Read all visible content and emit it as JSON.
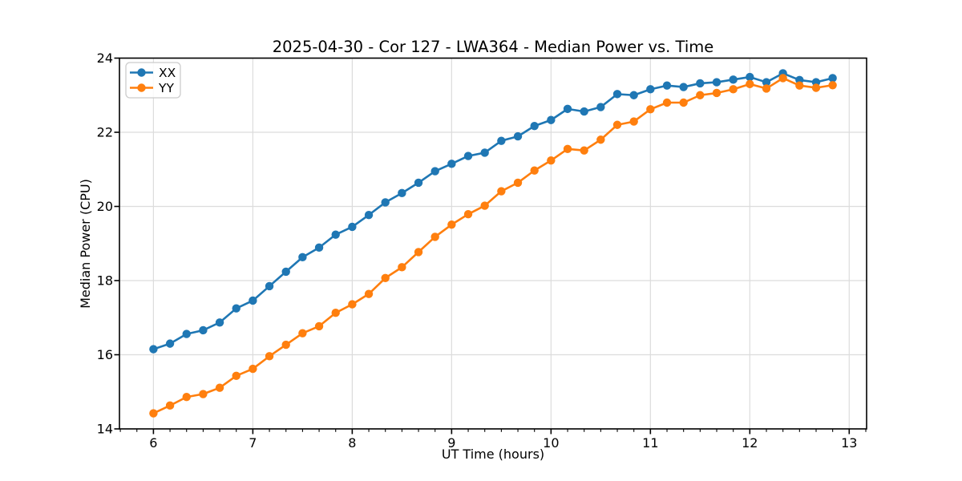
{
  "figure": {
    "background": "#ffffff",
    "axes_edge_color": "#000000",
    "grid_color": "#dcdcdc"
  },
  "chart_data": {
    "type": "line",
    "title": "2025-04-30 - Cor 127 - LWA364 - Median Power vs. Time",
    "xlabel": "UT Time (hours)",
    "ylabel": "Median Power (CPU)",
    "xlim": [
      5.658,
      13.175
    ],
    "ylim": [
      14,
      24
    ],
    "xticks": [
      6,
      7,
      8,
      9,
      10,
      11,
      12,
      13
    ],
    "yticks": [
      14,
      16,
      18,
      20,
      22,
      24
    ],
    "x_minor_tick_interval": 0.16667,
    "grid": true,
    "legend_position": "upper left",
    "marker": "circle",
    "x": [
      6.0,
      6.1667,
      6.3333,
      6.5,
      6.6667,
      6.8333,
      7.0,
      7.1667,
      7.3333,
      7.5,
      7.6667,
      7.8333,
      8.0,
      8.1667,
      8.3333,
      8.5,
      8.6667,
      8.8333,
      9.0,
      9.1667,
      9.3333,
      9.5,
      9.6667,
      9.8333,
      10.0,
      10.1667,
      10.3333,
      10.5,
      10.6667,
      10.8333,
      11.0,
      11.1667,
      11.3333,
      11.5,
      11.6667,
      11.8333,
      12.0,
      12.1667,
      12.3333,
      12.5,
      12.6667,
      12.8333
    ],
    "series": [
      {
        "name": "XX",
        "color": "#1f77b4",
        "values": [
          16.15,
          16.3,
          16.56,
          16.66,
          16.87,
          17.25,
          17.46,
          17.85,
          18.24,
          18.63,
          18.89,
          19.24,
          19.45,
          19.77,
          20.11,
          20.36,
          20.64,
          20.95,
          21.15,
          21.36,
          21.45,
          21.77,
          21.89,
          22.17,
          22.33,
          22.63,
          22.56,
          22.68,
          23.03,
          23.0,
          23.16,
          23.26,
          23.22,
          23.32,
          23.35,
          23.42,
          23.49,
          23.35,
          23.59,
          23.41,
          23.35,
          23.46
        ]
      },
      {
        "name": "YY",
        "color": "#ff7f0e",
        "values": [
          14.42,
          14.63,
          14.86,
          14.94,
          15.11,
          15.43,
          15.62,
          15.96,
          16.27,
          16.58,
          16.77,
          17.13,
          17.36,
          17.64,
          18.07,
          18.36,
          18.77,
          19.18,
          19.51,
          19.79,
          20.02,
          20.41,
          20.64,
          20.97,
          21.24,
          21.55,
          21.51,
          21.8,
          22.2,
          22.29,
          22.62,
          22.8,
          22.8,
          23.0,
          23.06,
          23.16,
          23.3,
          23.18,
          23.46,
          23.26,
          23.2,
          23.27
        ]
      }
    ]
  }
}
